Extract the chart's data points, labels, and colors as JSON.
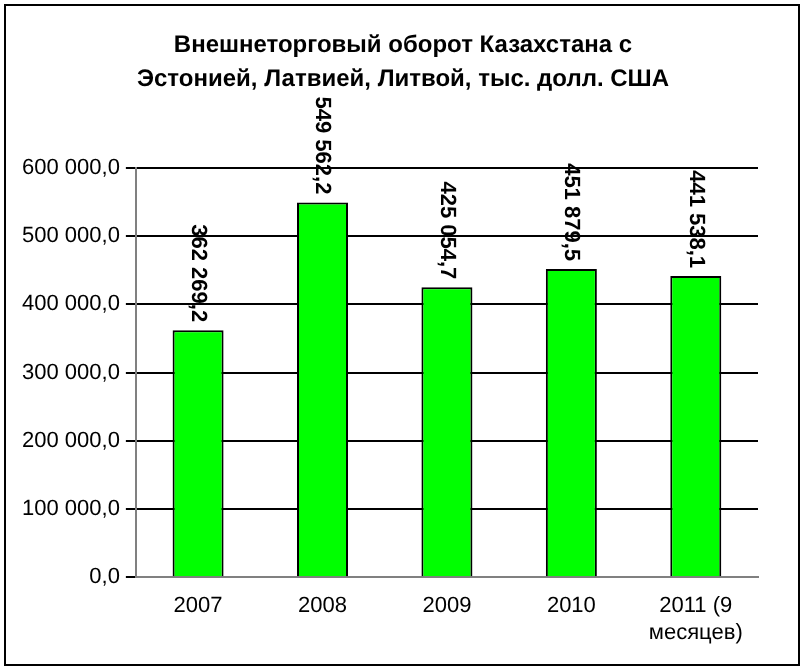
{
  "chart_data": {
    "type": "bar",
    "title": "Внешнеторговый оборот Казахстана с Эстонией, Латвией, Литвой, тыс. долл. США",
    "categories": [
      "2007",
      "2008",
      "2009",
      "2010",
      "2011 (9 месяцев)"
    ],
    "values": [
      362269.2,
      549562.2,
      425054.7,
      451879.5,
      441538.1
    ],
    "value_labels": [
      "362 269,2",
      "549 562,2",
      "425 054,7",
      "451 879,5",
      "441 538,1"
    ],
    "color": "#00ff00",
    "ylim": [
      0,
      600000
    ],
    "yticks": [
      {
        "value": 0,
        "label": "0,0"
      },
      {
        "value": 100000,
        "label": "100 000,0"
      },
      {
        "value": 200000,
        "label": "200 000,0"
      },
      {
        "value": 300000,
        "label": "300 000,0"
      },
      {
        "value": 400000,
        "label": "400 000,0"
      },
      {
        "value": 500000,
        "label": "500 000,0"
      },
      {
        "value": 600000,
        "label": "600 000,0"
      }
    ],
    "grid": "y",
    "legend": false
  }
}
